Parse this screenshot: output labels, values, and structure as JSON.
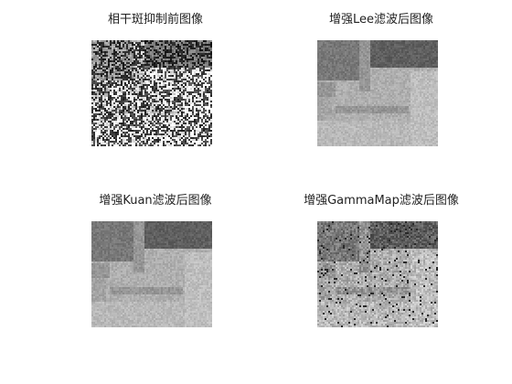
{
  "figure": {
    "panels": [
      {
        "title": "相干斑抑制前图像",
        "image_kind": "speckle-noisy-grayscale"
      },
      {
        "title": "增强Lee滤波后图像",
        "image_kind": "filtered-smooth-grayscale"
      },
      {
        "title": "增强Kuan滤波后图像",
        "image_kind": "filtered-smooth-grayscale"
      },
      {
        "title": "增强GammaMap滤波后图像",
        "image_kind": "filtered-slightly-noisy-grayscale"
      }
    ]
  }
}
